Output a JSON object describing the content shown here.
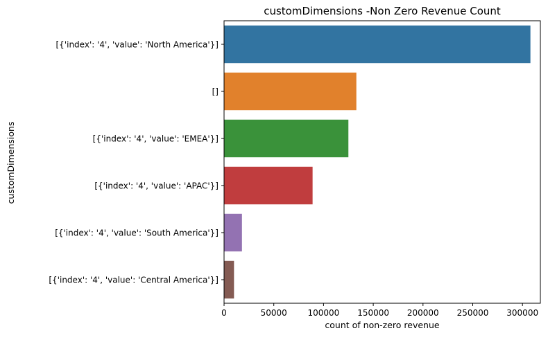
{
  "chart_data": {
    "type": "bar",
    "orientation": "horizontal",
    "title": "customDimensions -Non Zero Revenue Count",
    "xlabel": "count of non-zero revenue",
    "ylabel": "customDimensions",
    "categories": [
      "[{'index': '4', 'value': 'North America'}]",
      "[]",
      "[{'index': '4', 'value': 'EMEA'}]",
      "[{'index': '4', 'value': 'APAC'}]",
      "[{'index': '4', 'value': 'South America'}]",
      "[{'index': '4', 'value': 'Central America'}]"
    ],
    "values": [
      308000,
      133000,
      125000,
      89000,
      18000,
      10000
    ],
    "colors": [
      "#3274a1",
      "#e1812c",
      "#3a923a",
      "#c03d3e",
      "#9372b2",
      "#845b53"
    ],
    "xlim": [
      0,
      318000
    ],
    "xticks": [
      0,
      50000,
      100000,
      150000,
      200000,
      250000,
      300000
    ],
    "grid": false,
    "legend": "none"
  }
}
